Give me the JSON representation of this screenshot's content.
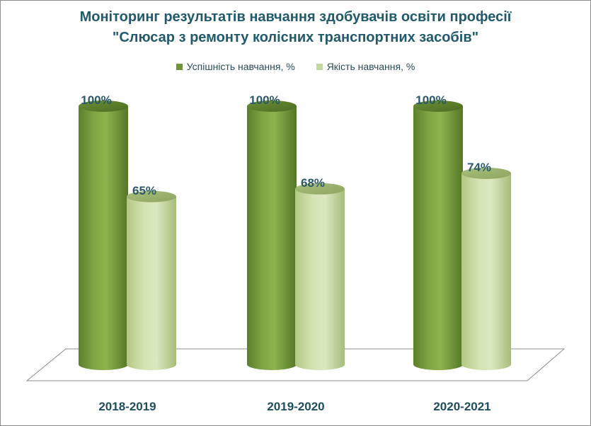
{
  "chart_data": {
    "type": "bar",
    "title_line1": "Моніторинг результатів навчання здобувачів освіти професії",
    "title_line2": "\"Слюсар з ремонту колісних транспортних засобів\"",
    "categories": [
      "2018-2019",
      "2019-2020",
      "2020-2021"
    ],
    "series": [
      {
        "name": "Успішність навчання, %",
        "values": [
          100,
          100,
          100
        ],
        "labels": [
          "100%",
          "100%",
          "100%"
        ],
        "color": "#7a9e3f"
      },
      {
        "name": "Якість навчання, %",
        "values": [
          65,
          68,
          74
        ],
        "labels": [
          "65%",
          "68%",
          "74%"
        ],
        "color": "#c3d69b"
      }
    ],
    "ylim": [
      0,
      100
    ],
    "grid": false,
    "legend_position": "top"
  }
}
